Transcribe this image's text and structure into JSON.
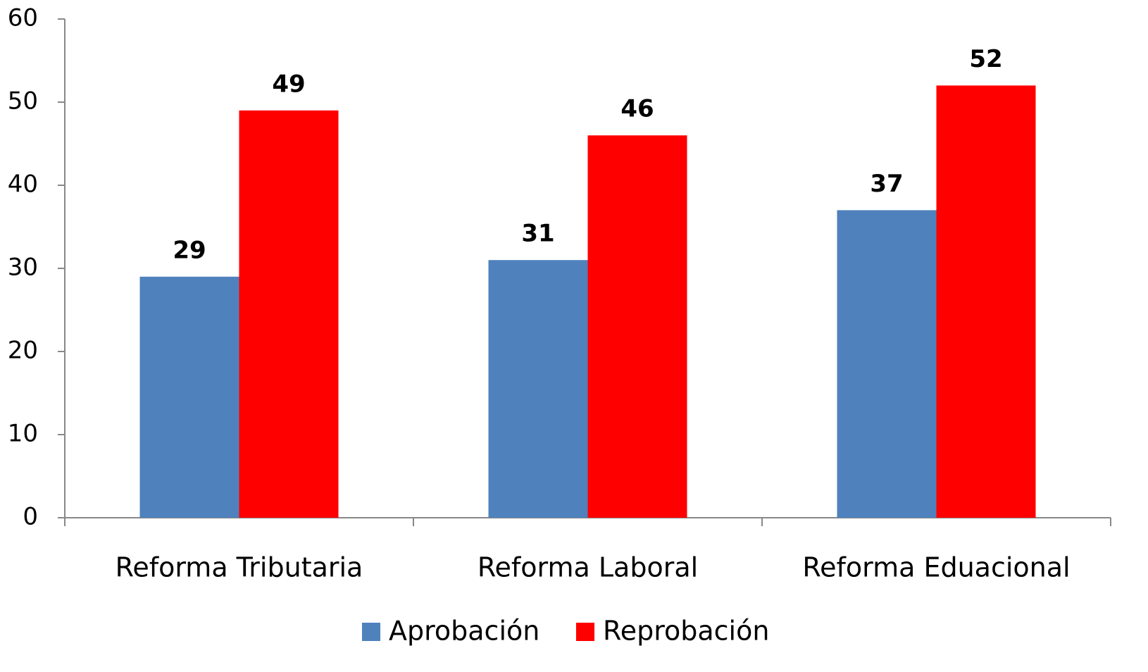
{
  "chart_data": {
    "type": "bar",
    "categories": [
      "Reforma Tributaria",
      "Reforma Laboral",
      "Reforma Eduacional"
    ],
    "series": [
      {
        "name": "Aprobación",
        "color": "#4f81bd",
        "values": [
          29,
          31,
          37
        ]
      },
      {
        "name": "Reprobación",
        "color": "#ff0000",
        "values": [
          49,
          46,
          52
        ]
      }
    ],
    "ylim": [
      0,
      60
    ],
    "yticks": [
      0,
      10,
      20,
      30,
      40,
      50,
      60
    ],
    "legend": "bottom"
  }
}
